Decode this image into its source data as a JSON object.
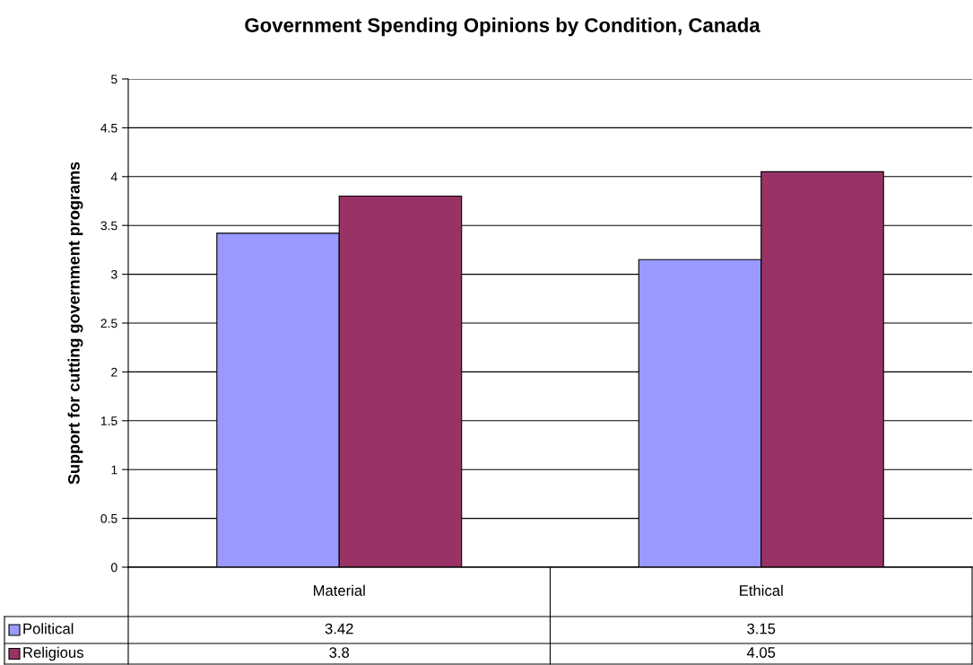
{
  "chart_data": {
    "type": "bar",
    "title": "Government Spending Opinions by Condition, Canada",
    "ylabel": "Support for cutting government programs",
    "categories": [
      "Material",
      "Ethical"
    ],
    "series": [
      {
        "name": "Political",
        "color": "#9999ff",
        "values": [
          3.42,
          3.15
        ]
      },
      {
        "name": "Religious",
        "color": "#993366",
        "values": [
          3.8,
          4.05
        ]
      }
    ],
    "ylim": [
      0,
      5
    ],
    "yticks": [
      0,
      0.5,
      1,
      1.5,
      2,
      2.5,
      3,
      3.5,
      4,
      4.5,
      5
    ],
    "grid": "y",
    "legend": "bottom left",
    "data_labels": true
  }
}
